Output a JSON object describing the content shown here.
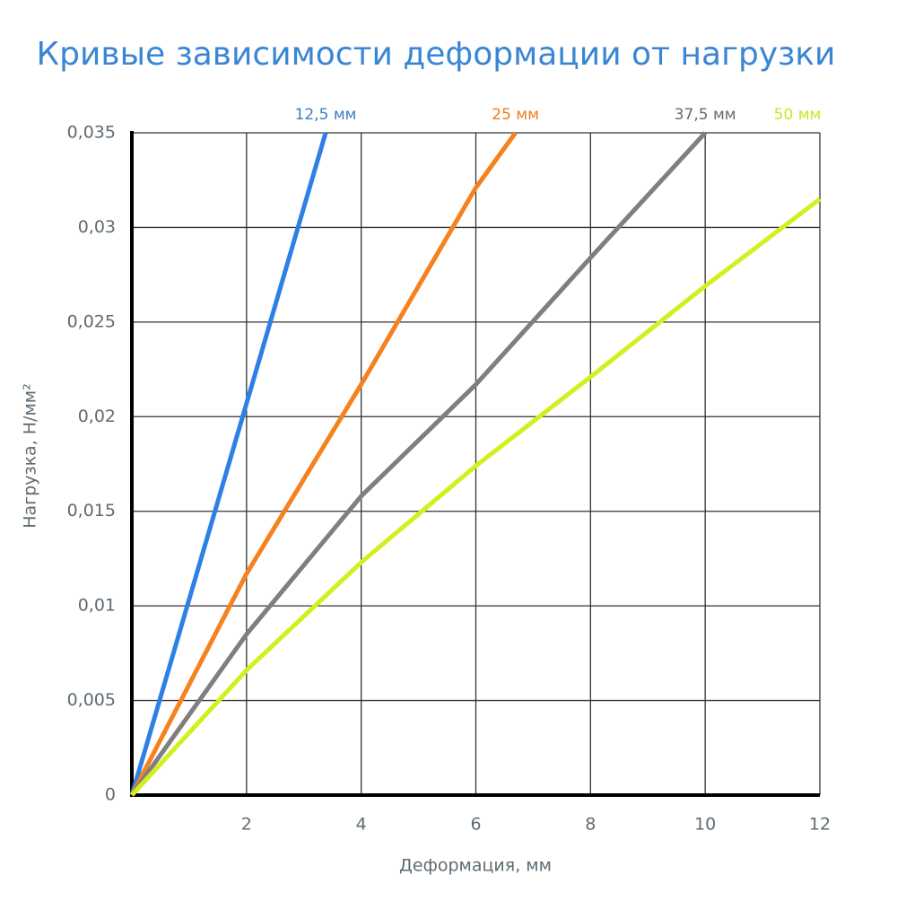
{
  "chart_data": {
    "type": "line",
    "title": "Кривые зависимости деформации от нагрузки",
    "xlabel": "Деформация, мм",
    "ylabel": "Нагрузка, Н/мм²",
    "xlim": [
      0,
      12
    ],
    "xticks": [
      2,
      4,
      6,
      8,
      10,
      12
    ],
    "ylim": [
      0,
      0.035
    ],
    "yticks": [
      0,
      {
        "value": 0.005,
        "label": "0,005"
      },
      {
        "value": 0.01,
        "label": "0,01"
      },
      {
        "value": 0.015,
        "label": "0,015"
      },
      {
        "value": 0.02,
        "label": "0,02"
      },
      {
        "value": 0.025,
        "label": "0,025"
      },
      {
        "value": 0.03,
        "label": "0,03"
      },
      {
        "value": 0.035,
        "label": "0,035"
      }
    ],
    "grid": true,
    "series": [
      {
        "name": "12,5 мм",
        "color": "#2f80e6",
        "label_color": "#3a7fc4",
        "x": [
          0,
          2,
          3.38
        ],
        "values": [
          0,
          0.0207,
          0.035
        ]
      },
      {
        "name": "25 мм",
        "color": "#f5821f",
        "label_color": "#f07c1c",
        "x": [
          0,
          2,
          4,
          6,
          6.69
        ],
        "values": [
          0,
          0.0117,
          0.0217,
          0.0321,
          0.035
        ]
      },
      {
        "name": "37,5 мм",
        "color": "#7f7f7f",
        "label_color": "#6b6b6b",
        "x": [
          0,
          2,
          4,
          6,
          8,
          10
        ],
        "values": [
          0,
          0.0085,
          0.0158,
          0.0217,
          0.0284,
          0.035
        ]
      },
      {
        "name": "50 мм",
        "color": "#d4ef1f",
        "label_color": "#c8e62a",
        "x": [
          0,
          2,
          4,
          6,
          8,
          10,
          12
        ],
        "values": [
          0,
          0.0066,
          0.0123,
          0.0174,
          0.0221,
          0.0269,
          0.0315
        ]
      }
    ]
  }
}
